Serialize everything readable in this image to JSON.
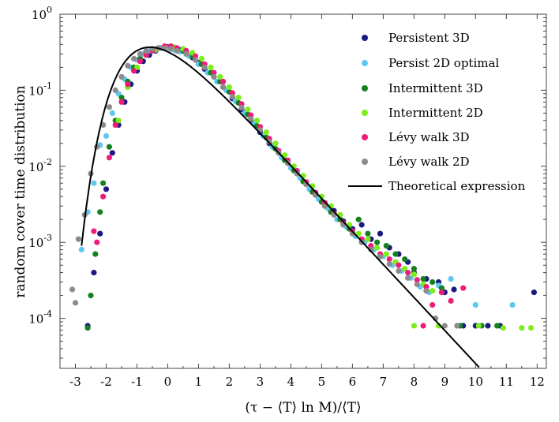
{
  "chart_data": {
    "type": "scatter",
    "xlabel": "(τ − ⟨T⟩ ln M)/⟨T⟩",
    "ylabel": "random cover time distribution",
    "xlim": [
      -3.5,
      12.3
    ],
    "ylim": [
      2.2e-05,
      1
    ],
    "yscale": "log",
    "grid": false,
    "legend_position": "top-right",
    "x_ticks": [
      {
        "value": -3,
        "label": "-3"
      },
      {
        "value": -2,
        "label": "-2"
      },
      {
        "value": -1,
        "label": "-1"
      },
      {
        "value": 0,
        "label": "0"
      },
      {
        "value": 1,
        "label": "1"
      },
      {
        "value": 2,
        "label": "2"
      },
      {
        "value": 3,
        "label": "3"
      },
      {
        "value": 4,
        "label": "4"
      },
      {
        "value": 5,
        "label": "5"
      },
      {
        "value": 6,
        "label": "6"
      },
      {
        "value": 7,
        "label": "7"
      },
      {
        "value": 8,
        "label": "8"
      },
      {
        "value": 9,
        "label": "9"
      },
      {
        "value": 10,
        "label": "10"
      },
      {
        "value": 11,
        "label": "11"
      },
      {
        "value": 12,
        "label": "12"
      }
    ],
    "y_ticks": [
      {
        "value": 1,
        "base": "10",
        "exp": "0"
      },
      {
        "value": 0.1,
        "base": "10",
        "exp": "-1"
      },
      {
        "value": 0.01,
        "base": "10",
        "exp": "-2"
      },
      {
        "value": 0.001,
        "base": "10",
        "exp": "-3"
      },
      {
        "value": 0.0001,
        "base": "10",
        "exp": "-4"
      }
    ],
    "series": [
      {
        "name": "Persistent 3D",
        "color": "#1a1a80",
        "points": [
          [
            -2.6,
            8e-05
          ],
          [
            -2.4,
            0.0004
          ],
          [
            -2.2,
            0.0013
          ],
          [
            -2.0,
            0.005
          ],
          [
            -1.8,
            0.015
          ],
          [
            -1.6,
            0.035
          ],
          [
            -1.4,
            0.07
          ],
          [
            -1.2,
            0.12
          ],
          [
            -1.0,
            0.18
          ],
          [
            -0.8,
            0.24
          ],
          [
            -0.6,
            0.29
          ],
          [
            -0.4,
            0.33
          ],
          [
            -0.2,
            0.36
          ],
          [
            0.0,
            0.37
          ],
          [
            0.2,
            0.36
          ],
          [
            0.4,
            0.34
          ],
          [
            0.6,
            0.31
          ],
          [
            0.8,
            0.27
          ],
          [
            1.0,
            0.23
          ],
          [
            1.2,
            0.19
          ],
          [
            1.5,
            0.15
          ],
          [
            1.8,
            0.11
          ],
          [
            2.1,
            0.078
          ],
          [
            2.4,
            0.056
          ],
          [
            2.7,
            0.04
          ],
          [
            3.0,
            0.028
          ],
          [
            3.3,
            0.02
          ],
          [
            3.6,
            0.015
          ],
          [
            3.9,
            0.011
          ],
          [
            4.2,
            0.008
          ],
          [
            4.5,
            0.0058
          ],
          [
            4.8,
            0.0042
          ],
          [
            5.1,
            0.0033
          ],
          [
            5.4,
            0.0026
          ],
          [
            5.7,
            0.0019
          ],
          [
            6.0,
            0.0015
          ],
          [
            6.3,
            0.0017
          ],
          [
            6.6,
            0.0011
          ],
          [
            6.9,
            0.0013
          ],
          [
            7.2,
            0.00085
          ],
          [
            7.5,
            0.0007
          ],
          [
            7.8,
            0.00055
          ],
          [
            8.0,
            0.0004
          ],
          [
            8.4,
            0.00033
          ],
          [
            8.8,
            0.0003
          ],
          [
            9.0,
            0.00022
          ],
          [
            9.3,
            0.00024
          ],
          [
            9.6,
            8e-05
          ],
          [
            10.0,
            8e-05
          ],
          [
            10.4,
            8e-05
          ],
          [
            10.8,
            8e-05
          ],
          [
            11.9,
            0.00022
          ]
        ]
      },
      {
        "name": "Persist 2D optimal",
        "color": "#5ec8f2",
        "points": [
          [
            -2.9,
            0.0011
          ],
          [
            -2.8,
            0.0008
          ],
          [
            -2.6,
            0.0025
          ],
          [
            -2.4,
            0.006
          ],
          [
            -2.2,
            0.019
          ],
          [
            -2.0,
            0.025
          ],
          [
            -1.8,
            0.05
          ],
          [
            -1.6,
            0.09
          ],
          [
            -1.4,
            0.14
          ],
          [
            -1.2,
            0.2
          ],
          [
            -1.0,
            0.25
          ],
          [
            -0.8,
            0.3
          ],
          [
            -0.6,
            0.33
          ],
          [
            -0.4,
            0.35
          ],
          [
            -0.2,
            0.36
          ],
          [
            0.0,
            0.36
          ],
          [
            0.2,
            0.34
          ],
          [
            0.4,
            0.32
          ],
          [
            0.7,
            0.28
          ],
          [
            1.0,
            0.22
          ],
          [
            1.3,
            0.17
          ],
          [
            1.6,
            0.13
          ],
          [
            1.9,
            0.1
          ],
          [
            2.2,
            0.072
          ],
          [
            2.5,
            0.05
          ],
          [
            2.8,
            0.036
          ],
          [
            3.1,
            0.025
          ],
          [
            3.4,
            0.018
          ],
          [
            3.7,
            0.013
          ],
          [
            4.0,
            0.0095
          ],
          [
            4.3,
            0.007
          ],
          [
            4.6,
            0.005
          ],
          [
            4.9,
            0.0037
          ],
          [
            5.2,
            0.0028
          ],
          [
            5.5,
            0.002
          ],
          [
            5.8,
            0.0016
          ],
          [
            6.1,
            0.0012
          ],
          [
            6.4,
            0.001
          ],
          [
            6.7,
            0.0008
          ],
          [
            7.0,
            0.00065
          ],
          [
            7.3,
            0.0005
          ],
          [
            7.6,
            0.00042
          ],
          [
            7.9,
            0.00034
          ],
          [
            8.2,
            0.00026
          ],
          [
            8.5,
            0.00022
          ],
          [
            8.8,
            0.00027
          ],
          [
            9.2,
            0.00033
          ],
          [
            10.0,
            0.00015
          ],
          [
            11.2,
            0.00015
          ]
        ]
      },
      {
        "name": "Intermittent 3D",
        "color": "#15801e",
        "points": [
          [
            -2.6,
            7.5e-05
          ],
          [
            -2.5,
            0.0002
          ],
          [
            -2.35,
            0.0007
          ],
          [
            -2.2,
            0.0025
          ],
          [
            -2.1,
            0.006
          ],
          [
            -1.9,
            0.018
          ],
          [
            -1.7,
            0.04
          ],
          [
            -1.5,
            0.08
          ],
          [
            -1.3,
            0.13
          ],
          [
            -1.1,
            0.2
          ],
          [
            -0.9,
            0.26
          ],
          [
            -0.7,
            0.31
          ],
          [
            -0.5,
            0.34
          ],
          [
            -0.3,
            0.36
          ],
          [
            -0.1,
            0.37
          ],
          [
            0.1,
            0.37
          ],
          [
            0.3,
            0.35
          ],
          [
            0.5,
            0.33
          ],
          [
            0.8,
            0.28
          ],
          [
            1.1,
            0.22
          ],
          [
            1.4,
            0.17
          ],
          [
            1.7,
            0.13
          ],
          [
            2.0,
            0.095
          ],
          [
            2.3,
            0.068
          ],
          [
            2.6,
            0.048
          ],
          [
            2.9,
            0.034
          ],
          [
            3.2,
            0.024
          ],
          [
            3.5,
            0.017
          ],
          [
            3.8,
            0.012
          ],
          [
            4.1,
            0.0088
          ],
          [
            4.4,
            0.0063
          ],
          [
            4.7,
            0.0046
          ],
          [
            5.0,
            0.0034
          ],
          [
            5.3,
            0.0025
          ],
          [
            5.6,
            0.002
          ],
          [
            5.9,
            0.0015
          ],
          [
            6.2,
            0.002
          ],
          [
            6.5,
            0.0013
          ],
          [
            6.8,
            0.001
          ],
          [
            7.1,
            0.0009
          ],
          [
            7.4,
            0.0007
          ],
          [
            7.7,
            0.0006
          ],
          [
            8.0,
            0.00045
          ],
          [
            8.3,
            0.00033
          ],
          [
            8.6,
            0.0003
          ],
          [
            8.9,
            0.00025
          ],
          [
            9.5,
            8e-05
          ],
          [
            10.2,
            8e-05
          ],
          [
            10.7,
            8e-05
          ]
        ]
      },
      {
        "name": "Intermittent 2D",
        "color": "#7cee1a",
        "points": [
          [
            -1.6,
            0.04
          ],
          [
            -1.3,
            0.11
          ],
          [
            -1.0,
            0.2
          ],
          [
            -0.7,
            0.29
          ],
          [
            -0.4,
            0.34
          ],
          [
            -0.1,
            0.37
          ],
          [
            0.2,
            0.37
          ],
          [
            0.5,
            0.35
          ],
          [
            0.8,
            0.31
          ],
          [
            1.1,
            0.26
          ],
          [
            1.4,
            0.2
          ],
          [
            1.7,
            0.15
          ],
          [
            2.0,
            0.11
          ],
          [
            2.3,
            0.08
          ],
          [
            2.6,
            0.056
          ],
          [
            2.9,
            0.04
          ],
          [
            3.2,
            0.028
          ],
          [
            3.5,
            0.02
          ],
          [
            3.8,
            0.014
          ],
          [
            4.1,
            0.01
          ],
          [
            4.4,
            0.0075
          ],
          [
            4.7,
            0.0055
          ],
          [
            5.0,
            0.004
          ],
          [
            5.3,
            0.003
          ],
          [
            5.6,
            0.0023
          ],
          [
            5.9,
            0.0017
          ],
          [
            6.2,
            0.0013
          ],
          [
            6.5,
            0.0011
          ],
          [
            6.8,
            0.00085
          ],
          [
            7.1,
            0.0007
          ],
          [
            7.4,
            0.00055
          ],
          [
            7.7,
            0.00045
          ],
          [
            8.0,
            0.00038
          ],
          [
            8.0,
            8e-05
          ],
          [
            8.3,
            0.00028
          ],
          [
            8.6,
            0.00023
          ],
          [
            8.8,
            8e-05
          ],
          [
            9.4,
            8e-05
          ],
          [
            10.1,
            8e-05
          ],
          [
            10.9,
            7.5e-05
          ],
          [
            11.5,
            7.5e-05
          ],
          [
            11.8,
            7.5e-05
          ]
        ]
      },
      {
        "name": "Lévy walk 3D",
        "color": "#ee1c7a",
        "points": [
          [
            -2.4,
            0.0014
          ],
          [
            -2.3,
            0.001
          ],
          [
            -2.1,
            0.004
          ],
          [
            -1.9,
            0.013
          ],
          [
            -1.7,
            0.035
          ],
          [
            -1.5,
            0.07
          ],
          [
            -1.3,
            0.12
          ],
          [
            -1.1,
            0.18
          ],
          [
            -0.9,
            0.24
          ],
          [
            -0.7,
            0.29
          ],
          [
            -0.5,
            0.33
          ],
          [
            -0.3,
            0.36
          ],
          [
            -0.1,
            0.38
          ],
          [
            0.1,
            0.38
          ],
          [
            0.3,
            0.36
          ],
          [
            0.6,
            0.33
          ],
          [
            0.9,
            0.28
          ],
          [
            1.2,
            0.22
          ],
          [
            1.5,
            0.17
          ],
          [
            1.8,
            0.13
          ],
          [
            2.1,
            0.092
          ],
          [
            2.4,
            0.066
          ],
          [
            2.7,
            0.047
          ],
          [
            3.0,
            0.033
          ],
          [
            3.3,
            0.023
          ],
          [
            3.6,
            0.016
          ],
          [
            3.9,
            0.012
          ],
          [
            4.2,
            0.0087
          ],
          [
            4.5,
            0.0062
          ],
          [
            4.8,
            0.0045
          ],
          [
            5.1,
            0.0033
          ],
          [
            5.4,
            0.0024
          ],
          [
            5.7,
            0.0018
          ],
          [
            6.0,
            0.0014
          ],
          [
            6.3,
            0.0011
          ],
          [
            6.6,
            0.0009
          ],
          [
            6.9,
            0.0007
          ],
          [
            7.2,
            0.0006
          ],
          [
            7.5,
            0.0005
          ],
          [
            7.8,
            0.0004
          ],
          [
            8.1,
            0.00032
          ],
          [
            8.4,
            0.00026
          ],
          [
            8.6,
            0.00015
          ],
          [
            8.9,
            0.00022
          ],
          [
            9.2,
            0.00017
          ],
          [
            9.6,
            0.00025
          ],
          [
            8.3,
            8e-05
          ]
        ]
      },
      {
        "name": "Lévy walk 2D",
        "color": "#8c8c8c",
        "points": [
          [
            -3.1,
            0.00024
          ],
          [
            -3.0,
            0.00016
          ],
          [
            -2.9,
            0.0011
          ],
          [
            -2.7,
            0.0023
          ],
          [
            -2.5,
            0.008
          ],
          [
            -2.3,
            0.018
          ],
          [
            -2.1,
            0.035
          ],
          [
            -1.9,
            0.06
          ],
          [
            -1.7,
            0.1
          ],
          [
            -1.5,
            0.15
          ],
          [
            -1.3,
            0.21
          ],
          [
            -1.1,
            0.26
          ],
          [
            -0.9,
            0.3
          ],
          [
            -0.7,
            0.33
          ],
          [
            -0.5,
            0.35
          ],
          [
            -0.3,
            0.36
          ],
          [
            -0.1,
            0.36
          ],
          [
            0.1,
            0.35
          ],
          [
            0.3,
            0.33
          ],
          [
            0.6,
            0.3
          ],
          [
            0.9,
            0.25
          ],
          [
            1.2,
            0.2
          ],
          [
            1.5,
            0.15
          ],
          [
            1.8,
            0.11
          ],
          [
            2.1,
            0.082
          ],
          [
            2.4,
            0.059
          ],
          [
            2.7,
            0.042
          ],
          [
            3.0,
            0.03
          ],
          [
            3.3,
            0.021
          ],
          [
            3.6,
            0.015
          ],
          [
            3.9,
            0.011
          ],
          [
            4.2,
            0.008
          ],
          [
            4.5,
            0.0058
          ],
          [
            4.8,
            0.0042
          ],
          [
            5.1,
            0.003
          ],
          [
            5.4,
            0.0023
          ],
          [
            5.7,
            0.0017
          ],
          [
            6.0,
            0.0013
          ],
          [
            6.3,
            0.001
          ],
          [
            6.6,
            0.0008
          ],
          [
            6.9,
            0.00065
          ],
          [
            7.2,
            0.00052
          ],
          [
            7.5,
            0.00042
          ],
          [
            7.8,
            0.00034
          ],
          [
            8.1,
            0.00028
          ],
          [
            8.4,
            0.00023
          ],
          [
            8.7,
            0.0001
          ],
          [
            9.0,
            8e-05
          ],
          [
            9.4,
            8e-05
          ]
        ]
      }
    ],
    "theory": {
      "name": "Theoretical expression",
      "color": "#000000"
    }
  }
}
